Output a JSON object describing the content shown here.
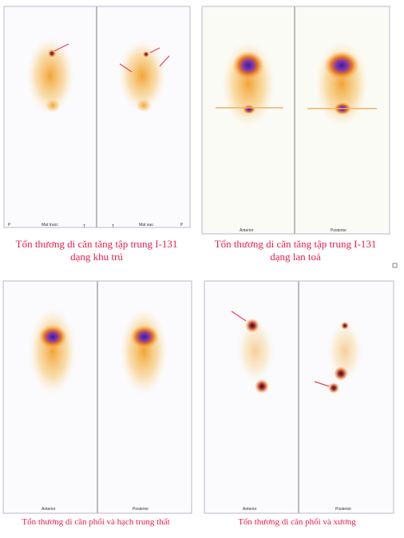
{
  "figures": [
    {
      "labels": [
        "P",
        "Mat truoc",
        "T",
        "T",
        "Mat sau",
        "P"
      ],
      "caption": [
        "Tổn thương di căn tăng tập trung I-131",
        "dạng khu trú"
      ]
    },
    {
      "labels": [
        "Anterior",
        "Posterior"
      ],
      "caption": [
        "Tổn thương di căn tăng tập trung I-131",
        "dạng lan toả"
      ]
    },
    {
      "labels": [
        "Anterior",
        "Posterior"
      ],
      "caption": [
        "Tổn thương di căn phổi và hạch trung thất"
      ]
    },
    {
      "labels": [
        "Anterior",
        "Posterior"
      ],
      "caption": [
        "Tổn thương di căn phổi và xương"
      ]
    }
  ]
}
